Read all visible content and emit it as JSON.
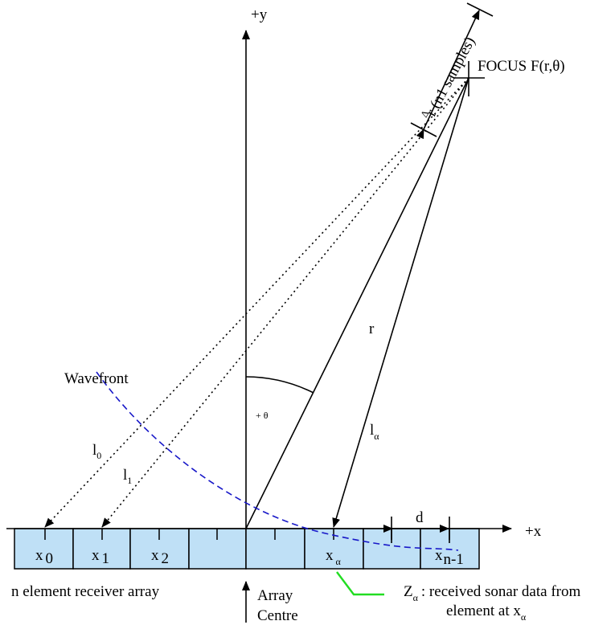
{
  "axes": {
    "y_label": "+y",
    "x_label": "+x"
  },
  "focus": {
    "label": "FOCUS F(r,θ)"
  },
  "delta_r": {
    "symbol": "Δ",
    "label": "r (n1 samples)"
  },
  "range_label": "r",
  "angle": {
    "label": "+ θ"
  },
  "wavefront_label": "Wavefront",
  "path_labels": {
    "l0": "l",
    "l0_sub": "0",
    "l1": "l",
    "l1_sub": "1",
    "la": "l",
    "la_sub": "α"
  },
  "spacing_label": "d",
  "elements": [
    {
      "main": "x",
      "sub": "0"
    },
    {
      "main": "x",
      "sub": "1"
    },
    {
      "main": "x",
      "sub": "2"
    },
    {
      "main": "",
      "sub": ""
    },
    {
      "main": "",
      "sub": ""
    },
    {
      "main": "x",
      "sub": "α"
    },
    {
      "main": "",
      "sub": ""
    },
    {
      "main": "x",
      "sub": "n-1"
    }
  ],
  "array_caption": "n element receiver array",
  "array_centre": {
    "line1": "Array",
    "line2": "Centre"
  },
  "z_alpha": {
    "symbol": "Z",
    "sub": "α",
    "text1": ": received sonar data from",
    "text2": "element at x",
    "text2_sub": "α"
  },
  "colors": {
    "array_fill": "#bfe0f6",
    "wavefront": "#1818c8",
    "z_pointer": "#22dd22"
  }
}
